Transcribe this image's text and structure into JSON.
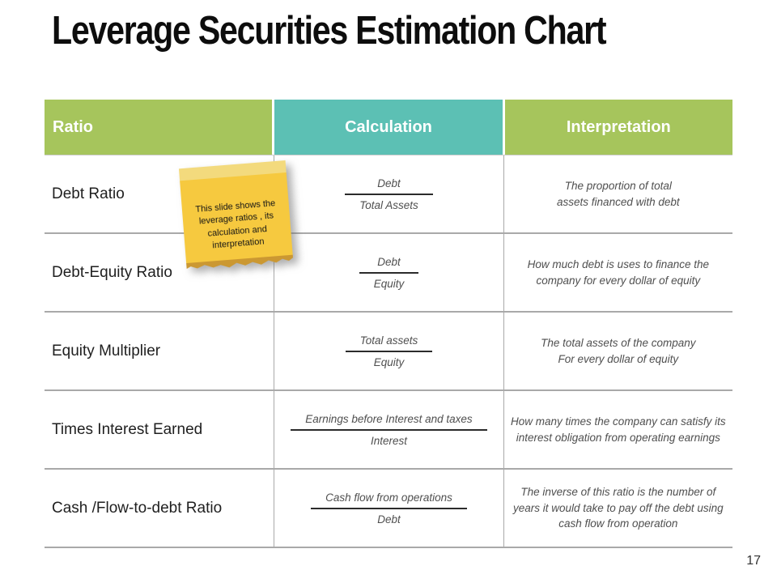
{
  "slide": {
    "title": "Leverage Securities Estimation Chart",
    "page_number": "17"
  },
  "sticky_note": {
    "text": "This slide shows the\nleverage ratios , its\ncalculation and\ninterpretation"
  },
  "table": {
    "headers": {
      "ratio": "Ratio",
      "calculation": "Calculation",
      "interpretation": "Interpretation"
    },
    "rows": [
      {
        "ratio": "Debt Ratio",
        "numerator": "Debt",
        "denominator": "Total Assets",
        "interpretation": "The proportion  of total\nassets financed with debt"
      },
      {
        "ratio": "Debt-Equity Ratio",
        "numerator": "Debt",
        "denominator": "Equity",
        "interpretation": "How much debt is uses to finance the\ncompany for every dollar of equity"
      },
      {
        "ratio": "Equity Multiplier",
        "numerator": "Total assets",
        "denominator": "Equity",
        "interpretation": "The total assets of the company\nFor every dollar of equity"
      },
      {
        "ratio": "Times Interest Earned",
        "numerator": "Earnings before Interest and taxes",
        "denominator": "Interest",
        "interpretation": "How many times the company can satisfy its\ninterest obligation from operating earnings"
      },
      {
        "ratio": "Cash /Flow-to-debt Ratio",
        "numerator": "Cash flow from operations",
        "denominator": "Debt",
        "interpretation": "The inverse of this ratio is the number of\nyears it would  take to pay off the debt using\ncash flow from operation"
      }
    ]
  },
  "colors": {
    "header_green": "#a6c55c",
    "header_teal": "#5cc0b4",
    "note_yellow": "#f6c93f",
    "note_fold": "#f3da7d",
    "note_tear": "#cb9832",
    "gridline_gray": "#a9a9a9",
    "body_text_gray": "#4f4f4f"
  }
}
